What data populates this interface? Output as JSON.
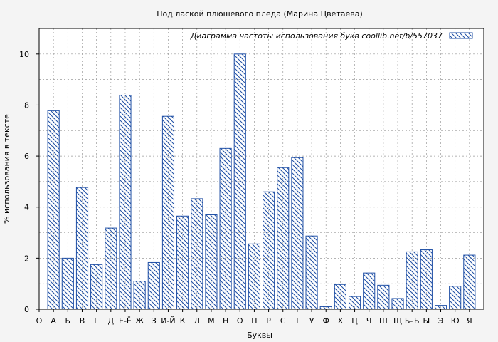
{
  "chart_data": {
    "type": "bar",
    "title": "Под лаской плюшевого пледа (Марина Цветаева)",
    "xlabel": "Буквы",
    "ylabel": "% использования в тексте",
    "legend": "Диаграмма частоты использования букв  coollib.net/b/557037",
    "legend_position": "top-right",
    "grid": true,
    "ylim": [
      0,
      11
    ],
    "yticks": [
      0,
      2,
      4,
      6,
      8,
      10
    ],
    "edge_categories": [
      "О",
      "Я"
    ],
    "categories": [
      "А",
      "Б",
      "В",
      "Г",
      "Д",
      "Е-Ё",
      "Ж",
      "З",
      "И-Й",
      "К",
      "Л",
      "М",
      "Н",
      "О",
      "П",
      "Р",
      "С",
      "Т",
      "У",
      "Ф",
      "Х",
      "Ц",
      "Ч",
      "Ш",
      "Щ",
      "Ь-Ъ",
      "Ы",
      "Э",
      "Ю",
      "Я"
    ],
    "values": [
      7.78,
      2.0,
      4.77,
      1.75,
      3.18,
      8.39,
      1.1,
      1.83,
      7.56,
      3.65,
      4.33,
      3.7,
      6.3,
      10.0,
      2.56,
      4.6,
      5.55,
      5.94,
      2.87,
      0.1,
      0.97,
      0.5,
      1.42,
      0.94,
      0.42,
      2.25,
      2.33,
      0.15,
      0.9,
      2.12
    ],
    "colors": {
      "bar_stroke": "#1f4fa5",
      "hatch": "#1f4fa5",
      "grid": "#9a9a9a",
      "axis": "#000000",
      "background": "#ffffff",
      "page": "#f4f4f4"
    }
  }
}
